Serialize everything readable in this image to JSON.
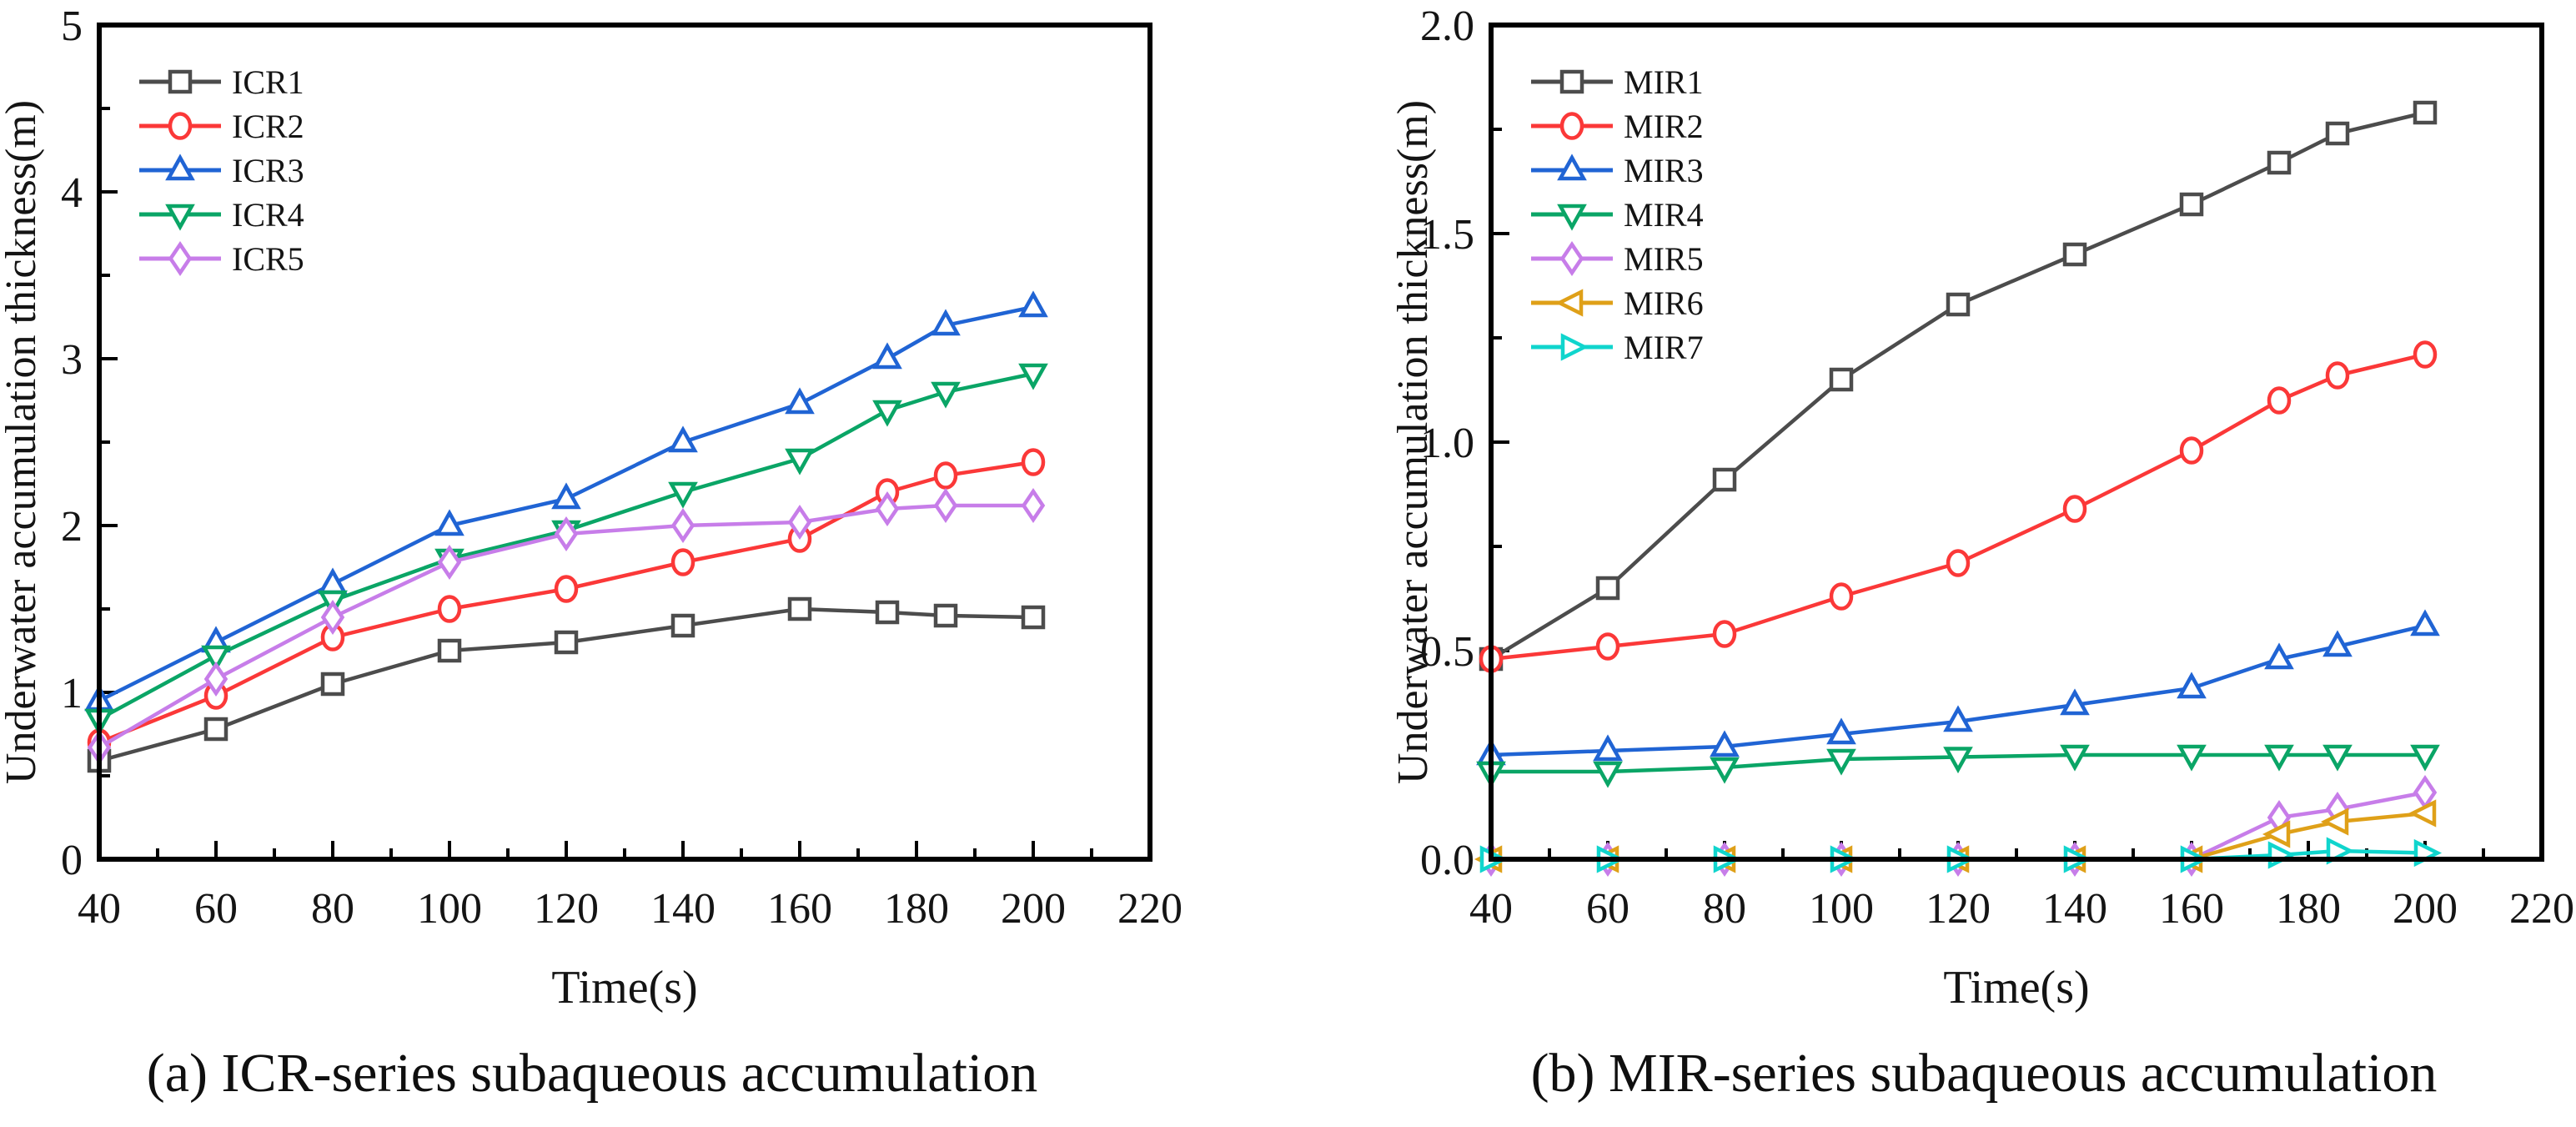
{
  "figure": {
    "background": "#ffffff",
    "text_color": "#141414",
    "axis_color": "#000000"
  },
  "chart_data": [
    {
      "type": "line",
      "caption": "(a) ICR-series subaqueous accumulation",
      "xlabel": "Time(s)",
      "ylabel": "Underwater accumulation thickness(m)",
      "legend_position": "top-left",
      "grid": false,
      "xlim": [
        40,
        220
      ],
      "ylim": [
        0,
        5
      ],
      "x_ticks": [
        40,
        60,
        80,
        100,
        120,
        140,
        160,
        180,
        200,
        220
      ],
      "x_tick_labels": [
        "40",
        "60",
        "80",
        "100",
        "120",
        "140",
        "160",
        "180",
        "200",
        "220"
      ],
      "y_ticks": [
        0,
        1,
        2,
        3,
        4,
        5
      ],
      "y_tick_labels": [
        "0",
        "1",
        "2",
        "3",
        "4",
        "5"
      ],
      "x": [
        40,
        60,
        80,
        100,
        120,
        140,
        160,
        175,
        185,
        200
      ],
      "series": [
        {
          "name": "ICR1",
          "color": "#4c4c4c",
          "marker": "square",
          "values": [
            0.59,
            0.78,
            1.05,
            1.25,
            1.3,
            1.4,
            1.5,
            1.48,
            1.46,
            1.45
          ]
        },
        {
          "name": "ICR2",
          "color": "#fb3838",
          "marker": "circle",
          "values": [
            0.7,
            0.98,
            1.33,
            1.5,
            1.62,
            1.78,
            1.92,
            2.2,
            2.3,
            2.38
          ]
        },
        {
          "name": "ICR3",
          "color": "#2064d4",
          "marker": "triangle-up",
          "values": [
            0.95,
            1.3,
            1.65,
            2.0,
            2.16,
            2.5,
            2.73,
            3.0,
            3.2,
            3.31
          ]
        },
        {
          "name": "ICR4",
          "color": "#0aa566",
          "marker": "triangle-down",
          "values": [
            0.84,
            1.22,
            1.55,
            1.8,
            1.97,
            2.2,
            2.4,
            2.69,
            2.8,
            2.91
          ]
        },
        {
          "name": "ICR5",
          "color": "#c77de9",
          "marker": "diamond",
          "values": [
            0.67,
            1.08,
            1.45,
            1.78,
            1.95,
            2.0,
            2.02,
            2.1,
            2.12,
            2.12
          ]
        }
      ]
    },
    {
      "type": "line",
      "caption": "(b) MIR-series subaqueous accumulation",
      "xlabel": "Time(s)",
      "ylabel": "Underwater accumulation thickness(m)",
      "legend_position": "top-left",
      "grid": false,
      "xlim": [
        40,
        220
      ],
      "ylim": [
        0,
        2
      ],
      "x_ticks": [
        40,
        60,
        80,
        100,
        120,
        140,
        160,
        180,
        200,
        220
      ],
      "x_tick_labels": [
        "40",
        "60",
        "80",
        "100",
        "120",
        "140",
        "160",
        "180",
        "200",
        "220"
      ],
      "y_ticks": [
        0,
        0.5,
        1,
        1.5,
        2
      ],
      "y_tick_labels": [
        "0.0",
        "0.5",
        "1.0",
        "1.5",
        "2.0"
      ],
      "x": [
        40,
        60,
        80,
        100,
        120,
        140,
        160,
        175,
        185,
        200
      ],
      "series": [
        {
          "name": "MIR1",
          "color": "#4c4c4c",
          "marker": "square",
          "values": [
            0.48,
            0.65,
            0.91,
            1.15,
            1.33,
            1.45,
            1.57,
            1.67,
            1.74,
            1.79
          ]
        },
        {
          "name": "MIR2",
          "color": "#fb3838",
          "marker": "circle",
          "values": [
            0.48,
            0.51,
            0.54,
            0.63,
            0.71,
            0.84,
            0.98,
            1.1,
            1.16,
            1.21
          ]
        },
        {
          "name": "MIR3",
          "color": "#2064d4",
          "marker": "triangle-up",
          "values": [
            0.25,
            0.26,
            0.27,
            0.3,
            0.33,
            0.37,
            0.41,
            0.48,
            0.51,
            0.56
          ]
        },
        {
          "name": "MIR4",
          "color": "#0aa566",
          "marker": "triangle-down",
          "values": [
            0.21,
            0.21,
            0.22,
            0.24,
            0.245,
            0.25,
            0.25,
            0.25,
            0.25,
            0.25
          ]
        },
        {
          "name": "MIR5",
          "color": "#c77de9",
          "marker": "diamond",
          "values": [
            0,
            0,
            0,
            0,
            0,
            0,
            0,
            0.1,
            0.12,
            0.16
          ]
        },
        {
          "name": "MIR6",
          "color": "#dfa018",
          "marker": "triangle-left",
          "values": [
            0,
            0,
            0,
            0,
            0,
            0,
            0,
            0.06,
            0.09,
            0.11
          ]
        },
        {
          "name": "MIR7",
          "color": "#10d5cd",
          "marker": "triangle-right",
          "values": [
            0,
            0,
            0,
            0,
            0,
            0,
            0,
            0.01,
            0.02,
            0.015
          ]
        }
      ]
    }
  ]
}
